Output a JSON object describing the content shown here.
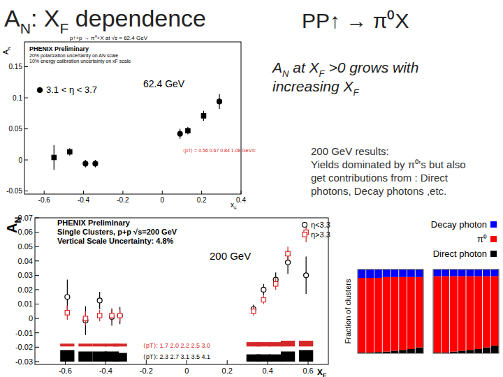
{
  "slide": {
    "title": [
      {
        "t": "A"
      },
      {
        "sub": "N"
      },
      {
        "t": ": X"
      },
      {
        "sub": "F"
      },
      {
        "t": " dependence"
      }
    ],
    "reaction": "PP↑ → π⁰X",
    "note": [
      [
        {
          "t": "A"
        },
        {
          "sub": "N"
        },
        {
          "t": " at X"
        },
        {
          "sub": "F"
        },
        {
          "t": " >0  grows with"
        }
      ],
      [
        {
          "t": "increasing  X"
        },
        {
          "sub": "F"
        }
      ]
    ],
    "results_text": [
      "200 GeV results:",
      "Yields dominated by π⁰’s but also",
      "get contributions from : Direct",
      "photons, Decay photons ,etc."
    ]
  },
  "chart_data": [
    {
      "type": "scatter",
      "title": "p↑+p → π⁰+X at √s = 62.4 GeV",
      "subtitle": "PHENIX Preliminary",
      "annotations": [
        "20% polarization uncertainty on AN scale",
        "10% energy calibration uncertainty on xF scale",
        "62.4 GeV",
        "⟨pT⟩ = 0.56 0.67 0.84 1.08 GeV/c"
      ],
      "x_label": [
        {
          "t": "x"
        },
        {
          "sub": "F"
        }
      ],
      "y_label": [
        {
          "t": "A"
        },
        {
          "sub": "N"
        }
      ],
      "xlim": [
        -0.7,
        0.4
      ],
      "xticks": [
        -0.6,
        -0.4,
        -0.2,
        0,
        0.2,
        0.4
      ],
      "ylim": [
        -0.055,
        0.19
      ],
      "yticks": [
        -0.05,
        0,
        0.05,
        0.1,
        0.15
      ],
      "legend": "left",
      "series": [
        {
          "name": "3.1 < η < 3.7",
          "marker": "circle",
          "color": "#000000",
          "x": [
            -0.39,
            -0.34,
            0.09,
            0.29
          ],
          "values": [
            -0.006,
            -0.006,
            0.042,
            0.094
          ],
          "errors": [
            0.006,
            0.006,
            0.008,
            0.012
          ]
        },
        {
          "marker": "square",
          "color": "#000000",
          "x": [
            -0.55,
            -0.47,
            0.13,
            0.21
          ],
          "values": [
            0.004,
            0.013,
            0.047,
            0.071
          ],
          "errors": [
            0.02,
            0.006,
            0.006,
            0.008
          ]
        }
      ]
    },
    {
      "type": "scatter",
      "title": "PHENIX Preliminary",
      "subtitle": "Single Clusters, p+p √s=200 GeV",
      "annotations": [
        "Vertical Scale Uncertainty: 4.8%",
        "200 GeV"
      ],
      "x_label": [
        {
          "t": "x"
        },
        {
          "sub": "F"
        }
      ],
      "y_label": [
        {
          "t": "A"
        },
        {
          "sub": "N"
        }
      ],
      "xlim": [
        -0.75,
        0.7
      ],
      "xticks": [
        -0.6,
        -0.4,
        -0.2,
        0,
        0.2,
        0.4,
        0.6
      ],
      "ylim": [
        -0.032,
        0.07
      ],
      "yticks": [
        -0.03,
        -0.02,
        -0.01,
        0,
        0.01,
        0.02,
        0.03,
        0.04,
        0.05,
        0.06,
        0.07
      ],
      "legend": "top-right",
      "x": [
        -0.59,
        -0.5,
        -0.43,
        -0.37,
        -0.33,
        0.33,
        0.38,
        0.44,
        0.5,
        0.59
      ],
      "series": [
        {
          "name": "η<3.3",
          "marker": "open_circle",
          "color": "#000000",
          "values": [
            0.015,
            -0.0015,
            0.0125,
            0.001,
            0.002,
            0.0065,
            0.02,
            0.027,
            0.039,
            0.03
          ],
          "errors": [
            0.012,
            0.01,
            0.006,
            0.006,
            0.006,
            0.003,
            0.004,
            0.005,
            0.008,
            0.013
          ],
          "syst": [
            0.008,
            0.007,
            0.007,
            0.007,
            0.006,
            0.005,
            0.005,
            0.005,
            0.007,
            0.008
          ],
          "syst_base": -0.03,
          "pt_label": "⟨pT⟩: 2.3 2.7 3.1 3.5 4.1"
        },
        {
          "name": "η>3.3",
          "marker": "open_square",
          "color": "#d62728",
          "values": [
            0.004,
            0.0,
            0.002,
            0.002,
            0.002,
            0.005,
            0.013,
            0.024,
            0.045,
            0.06
          ],
          "errors": [
            0.005,
            0.005,
            0.004,
            0.004,
            0.004,
            0.003,
            0.003,
            0.004,
            0.005,
            0.007
          ],
          "syst": [
            0.002,
            0.002,
            0.002,
            0.002,
            0.002,
            0.003,
            0.003,
            0.003,
            0.004,
            0.004
          ],
          "syst_base": -0.0195,
          "pt_label": "⟨pT⟩: 1.7 2.0 2.2 2.5 3.0"
        }
      ]
    },
    {
      "type": "bar",
      "stacked": true,
      "tick_labels": false,
      "y_label": "Fraction of clusters",
      "legend": "top-right",
      "categories": [
        null,
        null,
        null,
        null,
        null,
        null,
        null,
        null
      ],
      "ylim": [
        0,
        1
      ],
      "series": [
        {
          "name": "Direct photon",
          "color": "#000000",
          "values": [
            0.01,
            0.01,
            0.015,
            0.02,
            0.03,
            0.04,
            0.05,
            0.07
          ]
        },
        {
          "name": "π⁰",
          "color": "#ff0000",
          "values": [
            0.89,
            0.89,
            0.885,
            0.89,
            0.88,
            0.87,
            0.86,
            0.84
          ]
        },
        {
          "name": "Decay photon",
          "color": "#0000ff",
          "values": [
            0.1,
            0.1,
            0.1,
            0.09,
            0.09,
            0.09,
            0.09,
            0.09
          ]
        }
      ]
    },
    {
      "type": "bar",
      "stacked": true,
      "tick_labels": false,
      "categories": [
        null,
        null,
        null,
        null,
        null,
        null,
        null,
        null
      ],
      "ylim": [
        0,
        1
      ],
      "series": [
        {
          "color": "#000000",
          "values": [
            0.01,
            0.01,
            0.02,
            0.03,
            0.04,
            0.05,
            0.07,
            0.09
          ]
        },
        {
          "color": "#ff0000",
          "values": [
            0.91,
            0.91,
            0.9,
            0.89,
            0.88,
            0.87,
            0.85,
            0.83
          ]
        },
        {
          "color": "#0000ff",
          "values": [
            0.08,
            0.08,
            0.08,
            0.08,
            0.08,
            0.08,
            0.08,
            0.08
          ]
        }
      ]
    }
  ]
}
